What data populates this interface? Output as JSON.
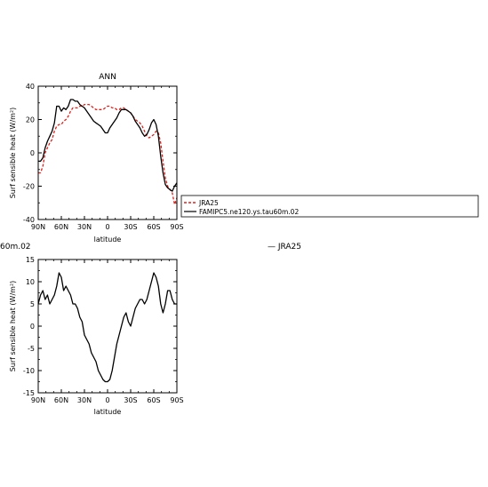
{
  "chart_data": [
    {
      "type": "line",
      "title": "ANN",
      "xlabel": "latitude",
      "ylabel": "Surf sensible heat (W/m²)",
      "xlim": [
        90,
        -90
      ],
      "ylim": [
        -40,
        40
      ],
      "xticks": [
        90,
        60,
        30,
        0,
        -30,
        -60,
        -90
      ],
      "xtick_labels": [
        "90N",
        "60N",
        "30N",
        "0",
        "30S",
        "60S",
        "90S"
      ],
      "yticks": [
        -40,
        -20,
        0,
        20,
        40
      ],
      "ytick_labels": [
        "-40",
        "-20",
        "0",
        "20",
        "40"
      ],
      "grid": false,
      "legend": "right of plot",
      "series": [
        {
          "name": "JRA25",
          "color": "#e0201b",
          "dashed": true,
          "x": [
            90,
            87,
            84,
            81,
            78,
            75,
            72,
            69,
            66,
            63,
            60,
            57,
            54,
            51,
            48,
            45,
            42,
            39,
            36,
            33,
            30,
            27,
            24,
            21,
            18,
            15,
            12,
            9,
            6,
            3,
            0,
            -3,
            -6,
            -9,
            -12,
            -15,
            -18,
            -21,
            -24,
            -27,
            -30,
            -33,
            -36,
            -39,
            -42,
            -45,
            -48,
            -51,
            -54,
            -57,
            -60,
            -63,
            -66,
            -69,
            -72,
            -75,
            -78,
            -81,
            -84,
            -87,
            -90
          ],
          "y": [
            -12,
            -12,
            -8,
            0,
            3,
            6,
            8,
            13,
            16,
            17,
            17,
            19,
            20,
            22,
            25,
            27,
            27,
            27,
            28,
            28,
            29,
            29,
            29,
            28,
            27,
            26,
            26,
            26,
            26,
            27,
            28,
            28,
            27,
            27,
            26,
            26,
            27,
            27,
            26,
            25,
            24,
            22,
            20,
            19,
            18,
            16,
            13,
            10,
            9,
            10,
            11,
            13,
            12,
            6,
            -5,
            -15,
            -20,
            -22,
            -24,
            -31,
            -27
          ]
        },
        {
          "name": "FAMIPC5.ne120.ys.tau60m.02",
          "color": "#000000",
          "dashed": false,
          "x": [
            90,
            87,
            84,
            81,
            78,
            75,
            72,
            69,
            66,
            63,
            60,
            57,
            54,
            51,
            48,
            45,
            42,
            39,
            36,
            33,
            30,
            27,
            24,
            21,
            18,
            15,
            12,
            9,
            6,
            3,
            0,
            -3,
            -6,
            -9,
            -12,
            -15,
            -18,
            -21,
            -24,
            -27,
            -30,
            -33,
            -36,
            -39,
            -42,
            -45,
            -48,
            -51,
            -54,
            -57,
            -60,
            -63,
            -66,
            -69,
            -72,
            -75,
            -78,
            -81,
            -84,
            -87,
            -90
          ],
          "y": [
            -5,
            -5,
            -3,
            3,
            7,
            10,
            13,
            18,
            28,
            28,
            25,
            27,
            26,
            28,
            32,
            32,
            31,
            31,
            29,
            28,
            27,
            25,
            23,
            21,
            19,
            18,
            17,
            16,
            14,
            12,
            12,
            15,
            17,
            19,
            21,
            24,
            26,
            26,
            26,
            25,
            24,
            22,
            19,
            17,
            15,
            12,
            10,
            11,
            14,
            18,
            20,
            17,
            10,
            -2,
            -12,
            -19,
            -21,
            -22,
            -23,
            -20,
            -18
          ]
        }
      ]
    },
    {
      "type": "line",
      "title": "",
      "xlabel": "latitude",
      "ylabel": "Surf sensible heat (W/m²)",
      "xlim": [
        90,
        -90
      ],
      "ylim": [
        -15,
        15
      ],
      "xticks": [
        90,
        60,
        30,
        0,
        -30,
        -60,
        -90
      ],
      "xtick_labels": [
        "90N",
        "60N",
        "30N",
        "0",
        "30S",
        "60S",
        "90S"
      ],
      "yticks": [
        -15,
        -10,
        -5,
        0,
        5,
        10,
        15
      ],
      "ytick_labels": [
        "-15",
        "-10",
        "-5",
        "0",
        "5",
        "10",
        "15"
      ],
      "grid": false,
      "series": [
        {
          "color": "#000000",
          "dashed": false,
          "x": [
            90,
            87,
            84,
            81,
            78,
            75,
            72,
            69,
            66,
            63,
            60,
            57,
            54,
            51,
            48,
            45,
            42,
            39,
            36,
            33,
            30,
            27,
            24,
            21,
            18,
            15,
            12,
            9,
            6,
            3,
            0,
            -3,
            -6,
            -9,
            -12,
            -15,
            -18,
            -21,
            -24,
            -27,
            -30,
            -33,
            -36,
            -39,
            -42,
            -45,
            -48,
            -51,
            -54,
            -57,
            -60,
            -63,
            -66,
            -69,
            -72,
            -75,
            -78,
            -81,
            -84,
            -87,
            -90
          ],
          "y": [
            5,
            7,
            8,
            6,
            7,
            5,
            6,
            7,
            9,
            12,
            11,
            8,
            9,
            8,
            7,
            5,
            5,
            4,
            2,
            1,
            -2,
            -3,
            -4,
            -6,
            -7,
            -8,
            -10,
            -11,
            -12,
            -12.5,
            -12.5,
            -12,
            -10,
            -7,
            -4,
            -2,
            0,
            2,
            3,
            1,
            0,
            2,
            4,
            5,
            6,
            6,
            5,
            6,
            8,
            10,
            12,
            11,
            9,
            5,
            3,
            5,
            8,
            8,
            6,
            5,
            5
          ]
        }
      ]
    }
  ],
  "legend_entries": [
    "JRA25",
    "FAMIPC5.ne120.ys.tau60m.02"
  ],
  "fragments": {
    "left_partial_label": "60m.02",
    "right_partial_label": "— JRA25"
  }
}
